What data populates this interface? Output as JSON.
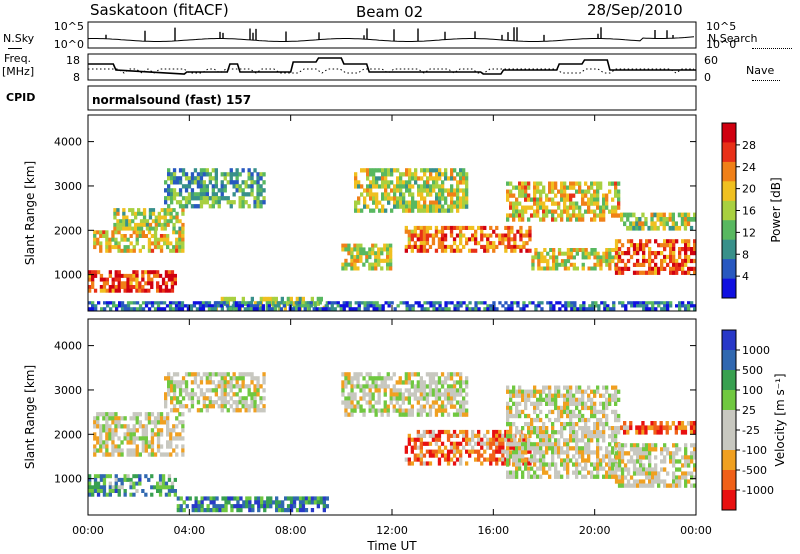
{
  "header": {
    "station": "Saskatoon (fitACF)",
    "beam": "Beam 02",
    "date": "28/Sep/2010"
  },
  "top_panels": {
    "nsky_label": "N.Sky",
    "nsearch_label": "N.Search",
    "noise_ticks_left": [
      "10^5",
      "10^0"
    ],
    "noise_ticks_right": [
      "10^5",
      "10^0"
    ],
    "freq_label_line1": "Freq.",
    "freq_label_line2": "[MHz]",
    "freq_ticks": [
      "18",
      "8"
    ],
    "nave_label": "Nave",
    "nave_ticks": [
      "60",
      "0"
    ],
    "cpid_label": "CPID",
    "cpid_value": "normalsound (fast) 157"
  },
  "chart_data": [
    {
      "type": "heatmap",
      "panel": "power",
      "ylabel": "Slant Range [km]",
      "ylim": [
        180,
        4600
      ],
      "yticks": [
        1000,
        2000,
        3000,
        4000
      ],
      "x_range_hours": [
        0,
        24
      ],
      "colorbar_label": "Power [dB]",
      "colorbar_ticks": [
        "4",
        "8",
        "12",
        "16",
        "20",
        "24",
        "28"
      ],
      "colorscale": [
        "#1010e0",
        "#2858c0",
        "#38908a",
        "#58b860",
        "#a8d040",
        "#f0c020",
        "#f08018",
        "#e83018",
        "#d00010"
      ],
      "echo_regions": [
        {
          "t0": 0.0,
          "t1": 3.5,
          "r0": 600,
          "r1": 1100,
          "level": 0.85
        },
        {
          "t0": 0.2,
          "t1": 3.8,
          "r0": 1500,
          "r1": 2000,
          "level": 0.6
        },
        {
          "t0": 1.0,
          "t1": 3.8,
          "r0": 2000,
          "r1": 2500,
          "level": 0.5
        },
        {
          "t0": 3.0,
          "t1": 7.0,
          "r0": 2500,
          "r1": 3400,
          "level": 0.35
        },
        {
          "t0": 5.0,
          "t1": 9.5,
          "r0": 200,
          "r1": 500,
          "level": 0.45
        },
        {
          "t0": 10.0,
          "t1": 12.0,
          "r0": 1100,
          "r1": 1700,
          "level": 0.55
        },
        {
          "t0": 10.5,
          "t1": 15.0,
          "r0": 2400,
          "r1": 3400,
          "level": 0.5
        },
        {
          "t0": 12.5,
          "t1": 17.5,
          "r0": 1500,
          "r1": 2100,
          "level": 0.75
        },
        {
          "t0": 16.5,
          "t1": 21.0,
          "r0": 2200,
          "r1": 3100,
          "level": 0.6
        },
        {
          "t0": 17.5,
          "t1": 21.0,
          "r0": 1100,
          "r1": 1600,
          "level": 0.55
        },
        {
          "t0": 20.8,
          "t1": 24.0,
          "r0": 1000,
          "r1": 1800,
          "level": 0.8
        },
        {
          "t0": 21.0,
          "t1": 24.0,
          "r0": 2000,
          "r1": 2400,
          "level": 0.5
        },
        {
          "t0": 0.0,
          "t1": 24.0,
          "r0": 200,
          "r1": 400,
          "level": 0.2
        }
      ]
    },
    {
      "type": "heatmap",
      "panel": "velocity",
      "ylabel": "Slant Range [km]",
      "ylim": [
        180,
        4600
      ],
      "yticks": [
        1000,
        2000,
        3000,
        4000
      ],
      "x_range_hours": [
        0,
        24
      ],
      "xticks": [
        "00:00",
        "04:00",
        "08:00",
        "12:00",
        "16:00",
        "20:00",
        "00:00"
      ],
      "xlabel": "Time UT",
      "colorbar_label": "Velocity [m s⁻¹]",
      "colorbar_ticks": [
        "1000",
        "500",
        "100",
        "25",
        "-25",
        "-100",
        "-500",
        "-1000"
      ],
      "colorscale": [
        "#e81010",
        "#f06018",
        "#f0a020",
        "#c8c8c0",
        "#c8c8c0",
        "#70c840",
        "#38a050",
        "#3068b0",
        "#2838c8"
      ],
      "echo_regions": [
        {
          "t0": 0.0,
          "t1": 3.5,
          "r0": 600,
          "r1": 1100,
          "level": 0.7
        },
        {
          "t0": 0.2,
          "t1": 3.8,
          "r0": 1500,
          "r1": 2500,
          "level": 0.45
        },
        {
          "t0": 3.0,
          "t1": 7.0,
          "r0": 2500,
          "r1": 3400,
          "level": 0.45
        },
        {
          "t0": 3.5,
          "t1": 9.5,
          "r0": 250,
          "r1": 600,
          "level": 0.78
        },
        {
          "t0": 10.0,
          "t1": 15.0,
          "r0": 2400,
          "r1": 3400,
          "level": 0.45
        },
        {
          "t0": 12.5,
          "t1": 17.5,
          "r0": 1300,
          "r1": 2100,
          "level": 0.2
        },
        {
          "t0": 16.5,
          "t1": 21.0,
          "r0": 1000,
          "r1": 3100,
          "level": 0.45
        },
        {
          "t0": 20.8,
          "t1": 24.0,
          "r0": 800,
          "r1": 1800,
          "level": 0.45
        },
        {
          "t0": 21.0,
          "t1": 24.0,
          "r0": 2000,
          "r1": 2300,
          "level": 0.15
        }
      ]
    }
  ]
}
